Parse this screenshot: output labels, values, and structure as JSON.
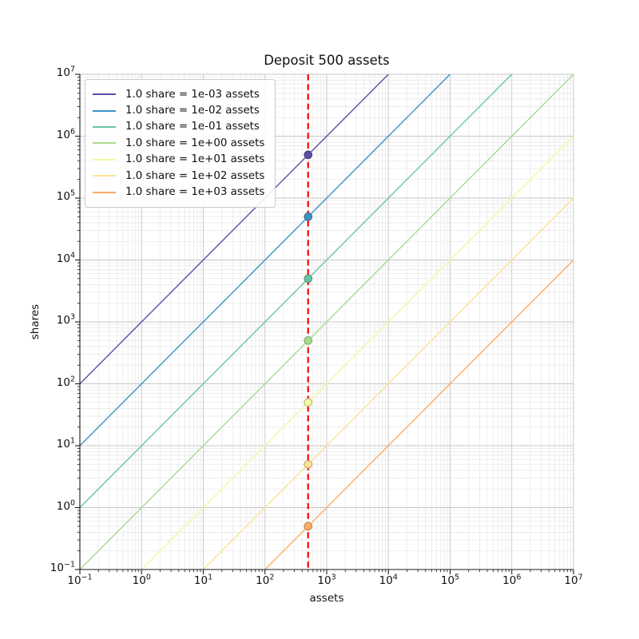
{
  "chart_data": {
    "type": "line",
    "title": "Deposit 500 assets",
    "xlabel": "assets",
    "ylabel": "shares",
    "xscale": "log",
    "yscale": "log",
    "xlim": [
      0.1,
      10000000
    ],
    "ylim": [
      0.1,
      10000000
    ],
    "x_tick_exponents": [
      -1,
      0,
      1,
      2,
      3,
      4,
      5,
      6,
      7
    ],
    "y_tick_exponents": [
      -1,
      0,
      1,
      2,
      3,
      4,
      5,
      6,
      7
    ],
    "grid": {
      "major": true,
      "minor": true
    },
    "legend_position": "upper-left",
    "deposit": {
      "assets": 500
    },
    "vline": {
      "x": 500,
      "color": "#ff0000",
      "style": "dashed"
    },
    "series": [
      {
        "label": "1.0 share = 1e-03 assets",
        "rate_assets_per_share": 0.001,
        "color": "#5a51a5",
        "point": {
          "assets": 500,
          "shares": 500000
        }
      },
      {
        "label": "1.0 share = 1e-02 assets",
        "rate_assets_per_share": 0.01,
        "color": "#3e92c2",
        "point": {
          "assets": 500,
          "shares": 50000
        }
      },
      {
        "label": "1.0 share = 1e-01 assets",
        "rate_assets_per_share": 0.1,
        "color": "#69c6a4",
        "point": {
          "assets": 500,
          "shares": 5000
        }
      },
      {
        "label": "1.0 share = 1e+00 assets",
        "rate_assets_per_share": 1,
        "color": "#a8dc8e",
        "point": {
          "assets": 500,
          "shares": 500
        }
      },
      {
        "label": "1.0 share = 1e+01 assets",
        "rate_assets_per_share": 10,
        "color": "#f2f9a2",
        "point": {
          "assets": 500,
          "shares": 50
        }
      },
      {
        "label": "1.0 share = 1e+02 assets",
        "rate_assets_per_share": 100,
        "color": "#fee294",
        "point": {
          "assets": 500,
          "shares": 5
        }
      },
      {
        "label": "1.0 share = 1e+03 assets",
        "rate_assets_per_share": 1000,
        "color": "#fdae61",
        "point": {
          "assets": 500,
          "shares": 0.5
        }
      }
    ]
  },
  "style": {
    "background": "#ffffff",
    "grid_major_color": "#c6c6c6",
    "grid_minor_color": "#e6e6e6",
    "spine_color": "#1a1a1a",
    "text_color": "#111111"
  }
}
